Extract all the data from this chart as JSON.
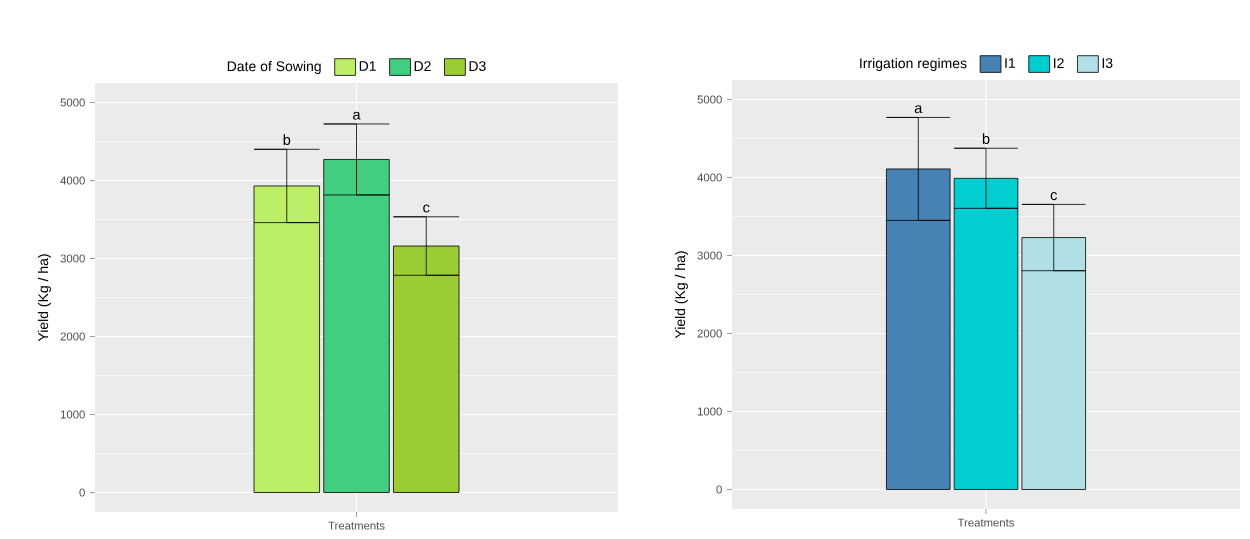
{
  "chart_data": [
    {
      "type": "bar",
      "categories": [
        "Treatments"
      ],
      "ylabel": "Yield (Kg / ha)",
      "legend_title": "Date of Sowing",
      "legend": "top",
      "grid": true,
      "ylim": [
        -250,
        5250
      ],
      "yticks": [
        0,
        1000,
        2000,
        3000,
        4000,
        5000
      ],
      "series": [
        {
          "name": "D1",
          "color": "#bcee68",
          "values": [
            3930
          ],
          "errors": [
            470
          ]
        },
        {
          "name": "D2",
          "color": "#43cd80",
          "values": [
            4270
          ],
          "errors": [
            455
          ]
        },
        {
          "name": "D3",
          "color": "#9acd32",
          "values": [
            3160
          ],
          "errors": [
            375
          ]
        }
      ],
      "annotations": [
        "b",
        "a",
        "c"
      ]
    },
    {
      "type": "bar",
      "categories": [
        "Treatments"
      ],
      "ylabel": "Yield (Kg / ha)",
      "legend_title": "Irrigation regimes",
      "legend": "top",
      "grid": true,
      "ylim": [
        -250,
        5250
      ],
      "yticks": [
        0,
        1000,
        2000,
        3000,
        4000,
        5000
      ],
      "series": [
        {
          "name": "I1",
          "color": "#4682b4",
          "values": [
            4110
          ],
          "errors": [
            660
          ]
        },
        {
          "name": "I2",
          "color": "#00ced1",
          "values": [
            3990
          ],
          "errors": [
            385
          ]
        },
        {
          "name": "I3",
          "color": "#b0e0e6",
          "values": [
            3230
          ],
          "errors": [
            425
          ]
        }
      ],
      "annotations": [
        "a",
        "b",
        "c"
      ]
    }
  ]
}
